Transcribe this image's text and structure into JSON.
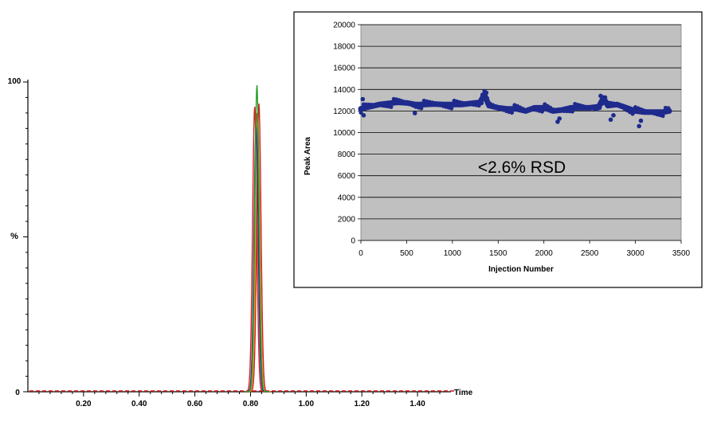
{
  "chart_data": [
    {
      "type": "line",
      "title": "",
      "xlabel": "Time",
      "ylabel": "%",
      "xlim": [
        0.0,
        1.52
      ],
      "ylim": [
        0,
        100
      ],
      "x_ticks": [
        "0.20",
        "0.40",
        "0.60",
        "0.80",
        "1.00",
        "1.20",
        "1.40"
      ],
      "y_ticks": [
        "0",
        "100"
      ],
      "series": [
        {
          "color": "#2ca02c",
          "peak_time": 0.823,
          "peak_height": 99
        },
        {
          "color": "#e0191e",
          "peak_time": 0.815,
          "peak_height": 92
        },
        {
          "color": "#e0191e",
          "peak_time": 0.83,
          "peak_height": 93
        },
        {
          "color": "#d03a2a",
          "peak_time": 0.822,
          "peak_height": 90
        },
        {
          "color": "#c8a020",
          "peak_time": 0.826,
          "peak_height": 88
        },
        {
          "color": "#1f3a93",
          "peak_time": 0.82,
          "peak_height": 86
        }
      ]
    },
    {
      "type": "scatter",
      "title": "",
      "xlabel": "Injection Number",
      "ylabel": "Peak Area",
      "annotation": "<2.6% RSD",
      "xlim": [
        0,
        3500
      ],
      "ylim": [
        0,
        20000
      ],
      "x_ticks": [
        "0",
        "500",
        "1000",
        "1500",
        "2000",
        "2500",
        "3000",
        "3500"
      ],
      "y_ticks": [
        "0",
        "2000",
        "4000",
        "6000",
        "8000",
        "10000",
        "12000",
        "14000",
        "16000",
        "18000",
        "20000"
      ],
      "grid": true,
      "point_color": "#1e2a8c",
      "plot_background": "#c0c0c0",
      "trend": {
        "x": [
          0,
          100,
          200,
          300,
          400,
          500,
          600,
          700,
          800,
          900,
          1000,
          1100,
          1200,
          1300,
          1350,
          1400,
          1500,
          1600,
          1700,
          1800,
          1900,
          2000,
          2100,
          2200,
          2300,
          2400,
          2500,
          2600,
          2650,
          2700,
          2800,
          2900,
          3000,
          3100,
          3200,
          3300,
          3370
        ],
        "y": [
          12200,
          12400,
          12600,
          12700,
          12800,
          12750,
          12600,
          12600,
          12650,
          12600,
          12600,
          12600,
          12700,
          12800,
          13500,
          12500,
          12300,
          12200,
          12200,
          12000,
          12300,
          12300,
          12000,
          12100,
          12300,
          12300,
          12300,
          12400,
          13200,
          12500,
          12600,
          12300,
          12000,
          11900,
          11900,
          11900,
          12000
        ]
      },
      "outliers": [
        {
          "x": 20,
          "y": 13100
        },
        {
          "x": 30,
          "y": 11600
        },
        {
          "x": 590,
          "y": 11800
        },
        {
          "x": 1330,
          "y": 13500
        },
        {
          "x": 1370,
          "y": 13700
        },
        {
          "x": 2150,
          "y": 11000
        },
        {
          "x": 2170,
          "y": 11300
        },
        {
          "x": 2620,
          "y": 13400
        },
        {
          "x": 2640,
          "y": 13100
        },
        {
          "x": 2730,
          "y": 11200
        },
        {
          "x": 2760,
          "y": 11600
        },
        {
          "x": 3040,
          "y": 10600
        },
        {
          "x": 3060,
          "y": 11100
        }
      ]
    }
  ]
}
